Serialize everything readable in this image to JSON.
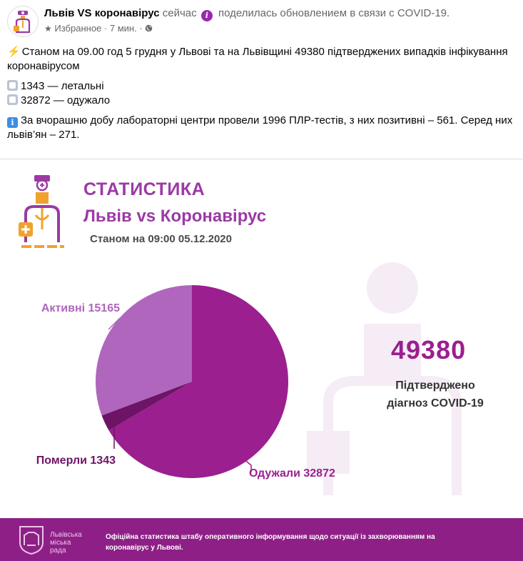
{
  "post": {
    "author": "Львів VS коронавірус",
    "time_word": "сейчас",
    "action": "поделилась обновлением в связи с COVID-19.",
    "meta_favorites": "Избранное",
    "meta_time": "7 мин.",
    "line1": "Станом на 09.00 год 5 грудня у Львові та на Львівщині 49380 підтверджених випадків інфікування коронавірусом",
    "line2": "1343  — летальні",
    "line3": "32872 — одужало",
    "line4": "За вчорашню добу лабораторні центри провели 1996 ПЛР-тестів, з них позитивні – 561. Серед них львів’ян – 271."
  },
  "icons": {
    "avatar": "doctor-logo-icon",
    "info_badge": "info-icon",
    "favorites": "star-icon",
    "audience": "globe-icon",
    "bullet_lightning": "lightning-icon",
    "bullet_square": "white-square-icon",
    "bullet_info": "information-icon",
    "footer_logo": "city-council-emblem-icon"
  },
  "infographic": {
    "title": "СТАТИСТИКА",
    "subtitle": "Львів vs Коронавірус",
    "date": "Станом на 09:00 05.12.2020",
    "total_value": "49380",
    "total_caption_line1": "Підтверджено",
    "total_caption_line2": "діагноз COVID-19",
    "footer_logo_text_1": "Львівська",
    "footer_logo_text_2": "міська",
    "footer_logo_text_3": "рада",
    "footer_text": "Офіційна статистика штабу оперативного інформування щодо ситуації із захворюванням на коронавірус у Львові."
  },
  "colors": {
    "recovered": "#9b1f8f",
    "deceased": "#6e1466",
    "active": "#b066bd",
    "footer": "#8e1f86",
    "heading": "#9b3aa5"
  },
  "chart_data": {
    "type": "pie",
    "title": "",
    "total": 49380,
    "categories": [
      "Одужали",
      "Померли",
      "Активні"
    ],
    "values": [
      32872,
      1343,
      15165
    ],
    "labels": [
      "Одужали 32872",
      "Померли 1343",
      "Активні 15165"
    ],
    "start_angle_deg": 0,
    "direction": "clockwise"
  }
}
